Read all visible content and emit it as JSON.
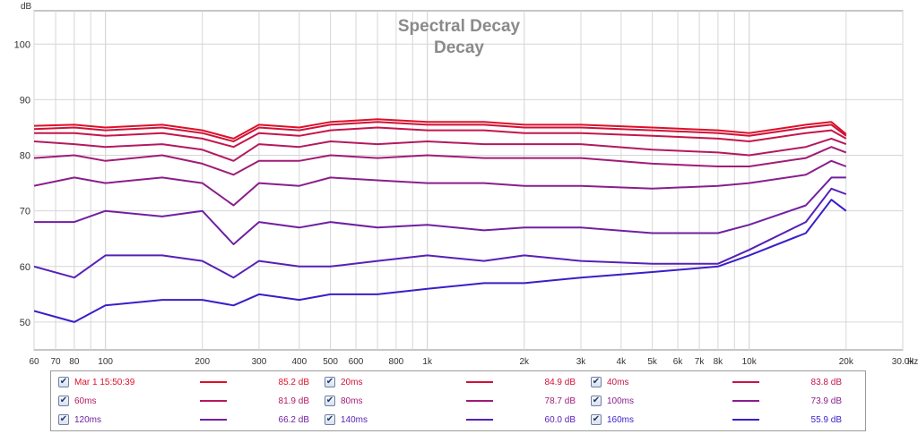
{
  "chart_data": {
    "type": "line",
    "title": "Spectral Decay",
    "subtitle": "Decay",
    "ylabel": "dB",
    "xlabel": "Hz",
    "xscale": "log",
    "xlim": [
      60,
      30000
    ],
    "ylim": [
      45,
      106
    ],
    "yticks": [
      50,
      60,
      70,
      80,
      90,
      100
    ],
    "xticks": [
      {
        "v": 60,
        "label": "60"
      },
      {
        "v": 70,
        "label": "70"
      },
      {
        "v": 80,
        "label": "80"
      },
      {
        "v": 100,
        "label": "100"
      },
      {
        "v": 200,
        "label": "200"
      },
      {
        "v": 300,
        "label": "300"
      },
      {
        "v": 400,
        "label": "400"
      },
      {
        "v": 500,
        "label": "500"
      },
      {
        "v": 600,
        "label": "600"
      },
      {
        "v": 800,
        "label": "800"
      },
      {
        "v": 1000,
        "label": "1k"
      },
      {
        "v": 2000,
        "label": "2k"
      },
      {
        "v": 3000,
        "label": "3k"
      },
      {
        "v": 4000,
        "label": "4k"
      },
      {
        "v": 5000,
        "label": "5k"
      },
      {
        "v": 6000,
        "label": "6k"
      },
      {
        "v": 7000,
        "label": "7k"
      },
      {
        "v": 8000,
        "label": "8k"
      },
      {
        "v": 10000,
        "label": "10k"
      },
      {
        "v": 20000,
        "label": "20k"
      },
      {
        "v": 30000,
        "label": "30.0k"
      }
    ],
    "grid": true,
    "legend_position": "bottom",
    "series": [
      {
        "name": "Mar 1 15:50:39",
        "color": "#dd1028",
        "value_label": "85.2 dB",
        "points": [
          [
            60,
            85.3
          ],
          [
            80,
            85.5
          ],
          [
            100,
            85
          ],
          [
            150,
            85.5
          ],
          [
            200,
            84.5
          ],
          [
            250,
            83
          ],
          [
            300,
            85.5
          ],
          [
            400,
            85
          ],
          [
            500,
            86
          ],
          [
            700,
            86.5
          ],
          [
            1000,
            86
          ],
          [
            1500,
            86
          ],
          [
            2000,
            85.5
          ],
          [
            3000,
            85.5
          ],
          [
            5000,
            85
          ],
          [
            8000,
            84.5
          ],
          [
            10000,
            84
          ],
          [
            15000,
            85.5
          ],
          [
            18000,
            86
          ],
          [
            20000,
            83.8
          ]
        ]
      },
      {
        "name": "20ms",
        "color": "#cf1238",
        "value_label": "84.9 dB",
        "points": [
          [
            60,
            84.7
          ],
          [
            80,
            85
          ],
          [
            100,
            84.5
          ],
          [
            150,
            85
          ],
          [
            200,
            84
          ],
          [
            250,
            82.5
          ],
          [
            300,
            85
          ],
          [
            400,
            84.5
          ],
          [
            500,
            85.5
          ],
          [
            700,
            86
          ],
          [
            1000,
            85.5
          ],
          [
            1500,
            85.5
          ],
          [
            2000,
            85
          ],
          [
            3000,
            85
          ],
          [
            5000,
            84.5
          ],
          [
            8000,
            84
          ],
          [
            10000,
            83.5
          ],
          [
            15000,
            85
          ],
          [
            18000,
            85.5
          ],
          [
            20000,
            83.5
          ]
        ]
      },
      {
        "name": "40ms",
        "color": "#c4164a",
        "value_label": "83.8 dB",
        "points": [
          [
            60,
            84
          ],
          [
            80,
            84
          ],
          [
            100,
            83.5
          ],
          [
            150,
            84
          ],
          [
            200,
            83
          ],
          [
            250,
            81.5
          ],
          [
            300,
            84
          ],
          [
            400,
            83.5
          ],
          [
            500,
            84.5
          ],
          [
            700,
            85
          ],
          [
            1000,
            84.5
          ],
          [
            1500,
            84.5
          ],
          [
            2000,
            84
          ],
          [
            3000,
            84
          ],
          [
            5000,
            83.5
          ],
          [
            8000,
            83
          ],
          [
            10000,
            82.5
          ],
          [
            15000,
            84
          ],
          [
            18000,
            84.5
          ],
          [
            20000,
            83
          ]
        ]
      },
      {
        "name": "60ms",
        "color": "#b3195f",
        "value_label": "81.9 dB",
        "points": [
          [
            60,
            82.5
          ],
          [
            80,
            82
          ],
          [
            100,
            81.5
          ],
          [
            150,
            82
          ],
          [
            200,
            81
          ],
          [
            250,
            79
          ],
          [
            300,
            82
          ],
          [
            400,
            81.5
          ],
          [
            500,
            82.5
          ],
          [
            700,
            82
          ],
          [
            1000,
            82.5
          ],
          [
            1500,
            82
          ],
          [
            2000,
            82
          ],
          [
            3000,
            82
          ],
          [
            5000,
            81
          ],
          [
            8000,
            80.5
          ],
          [
            10000,
            80
          ],
          [
            15000,
            81.5
          ],
          [
            18000,
            83
          ],
          [
            20000,
            82
          ]
        ]
      },
      {
        "name": "80ms",
        "color": "#a01c77",
        "value_label": "78.7 dB",
        "points": [
          [
            60,
            79.5
          ],
          [
            80,
            80
          ],
          [
            100,
            79
          ],
          [
            150,
            80
          ],
          [
            200,
            78.5
          ],
          [
            250,
            76.5
          ],
          [
            300,
            79
          ],
          [
            400,
            79
          ],
          [
            500,
            80
          ],
          [
            700,
            79.5
          ],
          [
            1000,
            80
          ],
          [
            1500,
            79.5
          ],
          [
            2000,
            79.5
          ],
          [
            3000,
            79.5
          ],
          [
            5000,
            78.5
          ],
          [
            8000,
            78
          ],
          [
            10000,
            78
          ],
          [
            15000,
            79.5
          ],
          [
            18000,
            81.5
          ],
          [
            20000,
            80.5
          ]
        ]
      },
      {
        "name": "100ms",
        "color": "#8a1e8c",
        "value_label": "73.9 dB",
        "points": [
          [
            60,
            74.5
          ],
          [
            80,
            76
          ],
          [
            100,
            75
          ],
          [
            150,
            76
          ],
          [
            200,
            75
          ],
          [
            250,
            71
          ],
          [
            300,
            75
          ],
          [
            400,
            74.5
          ],
          [
            500,
            76
          ],
          [
            700,
            75.5
          ],
          [
            1000,
            75
          ],
          [
            1500,
            75
          ],
          [
            2000,
            74.5
          ],
          [
            3000,
            74.5
          ],
          [
            5000,
            74
          ],
          [
            8000,
            74.5
          ],
          [
            10000,
            75
          ],
          [
            15000,
            76.5
          ],
          [
            18000,
            79
          ],
          [
            20000,
            78
          ]
        ]
      },
      {
        "name": "120ms",
        "color": "#701fa2",
        "value_label": "66.2 dB",
        "points": [
          [
            60,
            68
          ],
          [
            80,
            68
          ],
          [
            100,
            70
          ],
          [
            150,
            69
          ],
          [
            200,
            70
          ],
          [
            250,
            64
          ],
          [
            300,
            68
          ],
          [
            400,
            67
          ],
          [
            500,
            68
          ],
          [
            700,
            67
          ],
          [
            1000,
            67.5
          ],
          [
            1500,
            66.5
          ],
          [
            2000,
            67
          ],
          [
            3000,
            67
          ],
          [
            5000,
            66
          ],
          [
            8000,
            66
          ],
          [
            10000,
            67.5
          ],
          [
            15000,
            71
          ],
          [
            18000,
            76
          ],
          [
            20000,
            76
          ]
        ]
      },
      {
        "name": "140ms",
        "color": "#5720b6",
        "value_label": "60.0 dB",
        "points": [
          [
            60,
            60
          ],
          [
            80,
            58
          ],
          [
            100,
            62
          ],
          [
            150,
            62
          ],
          [
            200,
            61
          ],
          [
            250,
            58
          ],
          [
            300,
            61
          ],
          [
            400,
            60
          ],
          [
            500,
            60
          ],
          [
            700,
            61
          ],
          [
            1000,
            62
          ],
          [
            1500,
            61
          ],
          [
            2000,
            62
          ],
          [
            3000,
            61
          ],
          [
            5000,
            60.5
          ],
          [
            8000,
            60.5
          ],
          [
            10000,
            63
          ],
          [
            15000,
            68
          ],
          [
            18000,
            74
          ],
          [
            20000,
            73
          ]
        ]
      },
      {
        "name": "160ms",
        "color": "#3a1ec8",
        "value_label": "55.9 dB",
        "points": [
          [
            60,
            52
          ],
          [
            80,
            50
          ],
          [
            100,
            53
          ],
          [
            150,
            54
          ],
          [
            200,
            54
          ],
          [
            250,
            53
          ],
          [
            300,
            55
          ],
          [
            400,
            54
          ],
          [
            500,
            55
          ],
          [
            700,
            55
          ],
          [
            1000,
            56
          ],
          [
            1500,
            57
          ],
          [
            2000,
            57
          ],
          [
            3000,
            58
          ],
          [
            5000,
            59
          ],
          [
            8000,
            60
          ],
          [
            10000,
            62
          ],
          [
            15000,
            66
          ],
          [
            18000,
            72
          ],
          [
            20000,
            70
          ]
        ]
      }
    ]
  }
}
